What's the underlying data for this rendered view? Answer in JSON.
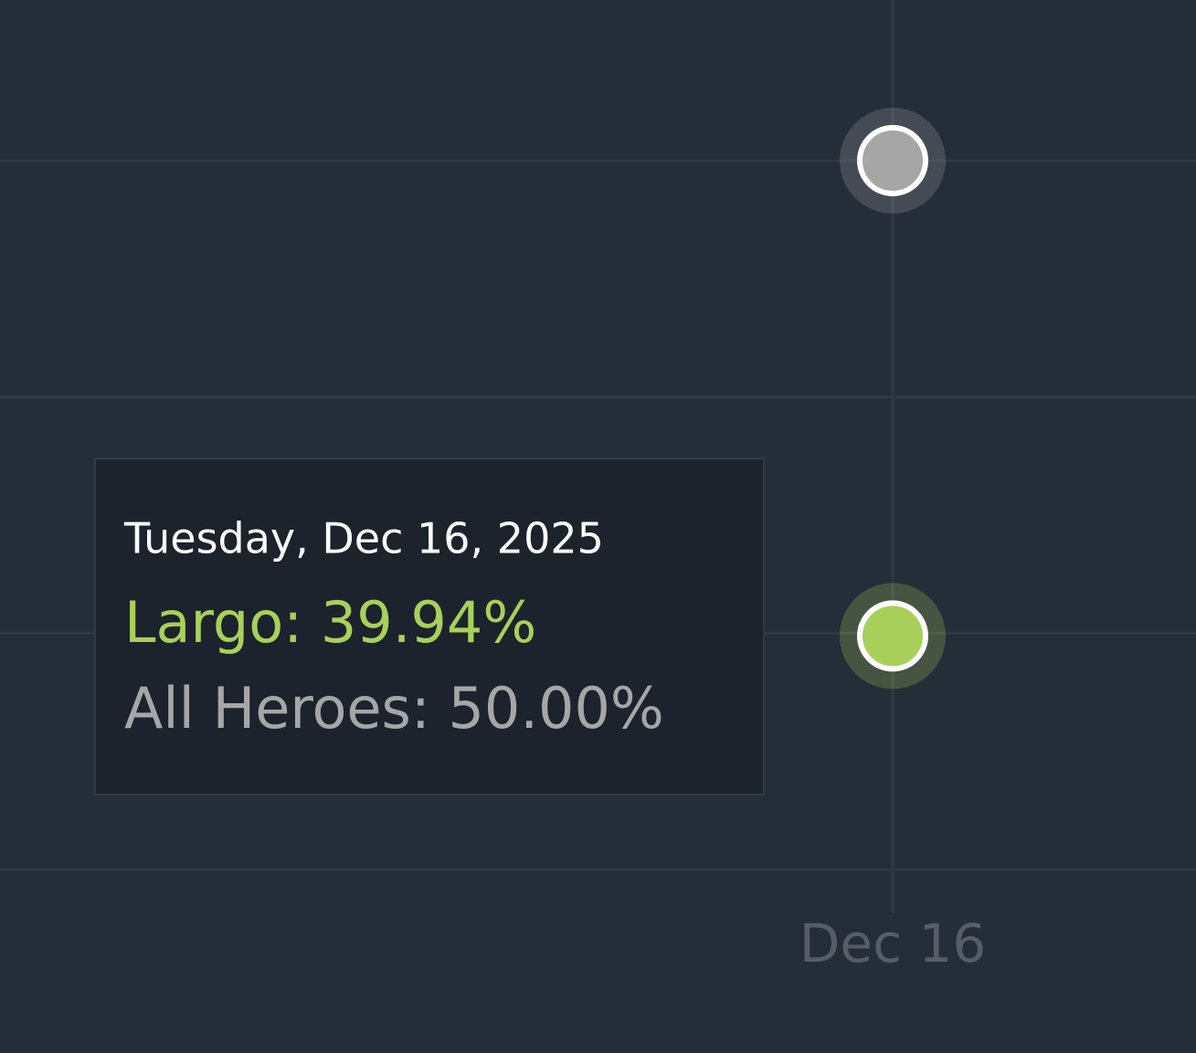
{
  "chart_data": {
    "type": "line",
    "categories": [
      "Dec 16"
    ],
    "series": [
      {
        "name": "Largo",
        "color": "#a8d05a",
        "values": [
          39.94
        ],
        "value_labels": [
          "39.94%"
        ]
      },
      {
        "name": "All Heroes",
        "color": "#a6a6a6",
        "values": [
          50.0
        ],
        "value_labels": [
          "50.00%"
        ]
      }
    ],
    "ylim": [
      35,
      53.4
    ],
    "yticks": [
      35,
      40,
      45,
      50
    ],
    "grid": true,
    "tooltip": {
      "title": "Tuesday, Dec 16, 2025",
      "lines": [
        "Largo: 39.94%",
        "All Heroes: 50.00%"
      ]
    }
  }
}
